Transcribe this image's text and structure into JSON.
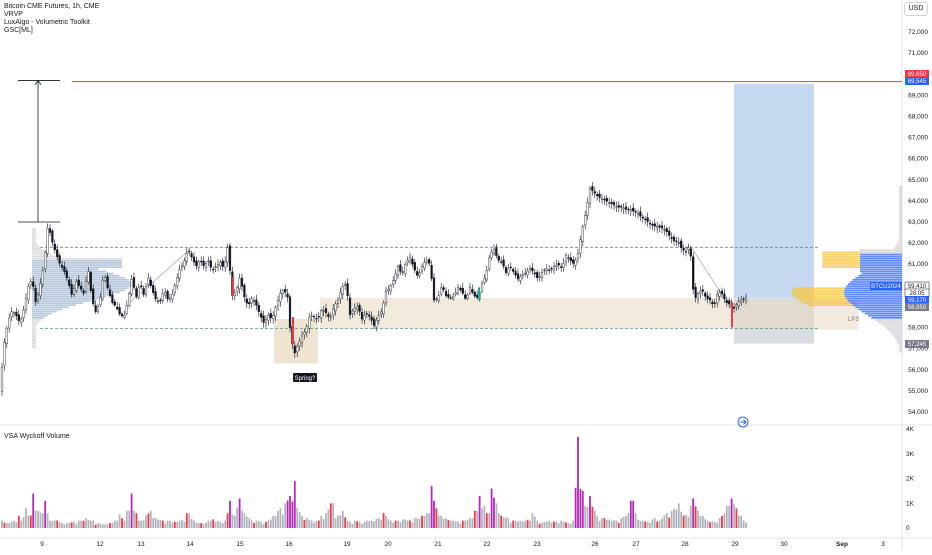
{
  "header": {
    "symbol_title": "Bitcoin CME Futures, 1h, CME",
    "indicators": [
      "VRVP",
      "LuxAlgo - Volumetric Toolkit",
      "GSC[ML]"
    ],
    "currency_button": "USD"
  },
  "price_axis": {
    "ticks": [
      "72,000",
      "71,000",
      "70,000",
      "69,000",
      "68,000",
      "67,000",
      "66,000",
      "65,000",
      "64,000",
      "63,000",
      "62,000",
      "61,000",
      "60,000",
      "59,000",
      "58,000",
      "57,000",
      "56,000",
      "55,000",
      "54,000"
    ],
    "labels": [
      {
        "text": "69,650",
        "price": 69650,
        "color": "#f23645"
      },
      {
        "text": "69,545",
        "price": 69545,
        "color": "#2962ff"
      },
      {
        "text": "BTCU2024",
        "price": 59410,
        "color": "#2962ff"
      },
      {
        "text": "59,410",
        "price": 59410,
        "color": "#131722"
      },
      {
        "text": "28:05",
        "price": 59100,
        "color": "#131722"
      },
      {
        "text": "59,170",
        "price": 58800,
        "color": "#2962ff"
      },
      {
        "text": "58,950",
        "price": 58450,
        "color": "#787b86"
      },
      {
        "text": "57,245",
        "price": 57245,
        "color": "#787b86"
      }
    ]
  },
  "time_axis": {
    "labels": [
      "9",
      "12",
      "13",
      "14",
      "15",
      "16",
      "19",
      "20",
      "21",
      "22",
      "23",
      "26",
      "27",
      "28",
      "29",
      "30",
      "Sep",
      "3"
    ]
  },
  "annotations": {
    "spring_label": "Spring?",
    "lps_label": "LPS",
    "replay_icon": "arrow-right-circle-icon"
  },
  "volume_pane": {
    "title": "VSA Wyckoff Volume",
    "ticks": [
      "3K",
      "2K",
      "1K",
      "0"
    ],
    "cut_tick": "4K"
  },
  "colors": {
    "up": "#ffffff",
    "down": "#131722",
    "accent_red": "#f23645",
    "accent_blue": "#2962ff",
    "zone_fill": "#e8d9bf",
    "target_fill": "#b9d0ee",
    "stop_fill": "#d1d4dc",
    "volume_magenta": "#b22ab5",
    "volume_red": "#f23645",
    "volume_grey": "#b2b5be"
  },
  "chart_data": {
    "type": "candlestick",
    "title": "Bitcoin CME Futures, 1h, CME",
    "ylim": [
      53800,
      72800
    ],
    "levels": {
      "resistance": 69650,
      "range_high": 61800,
      "range_low": 57950
    },
    "path": [
      [
        0,
        55000
      ],
      [
        4,
        57200
      ],
      [
        8,
        58300
      ],
      [
        12,
        58800
      ],
      [
        16,
        58600
      ],
      [
        20,
        58200
      ],
      [
        24,
        58900
      ],
      [
        28,
        59900
      ],
      [
        32,
        60300
      ],
      [
        36,
        59100
      ],
      [
        40,
        60000
      ],
      [
        44,
        61000
      ],
      [
        48,
        62900
      ],
      [
        52,
        62100
      ],
      [
        56,
        61500
      ],
      [
        60,
        61000
      ],
      [
        64,
        60700
      ],
      [
        68,
        60200
      ],
      [
        72,
        59500
      ],
      [
        76,
        60200
      ],
      [
        80,
        59900
      ],
      [
        84,
        59600
      ],
      [
        88,
        60800
      ],
      [
        92,
        59300
      ],
      [
        96,
        58700
      ],
      [
        100,
        59300
      ],
      [
        104,
        60600
      ],
      [
        108,
        59800
      ],
      [
        112,
        59200
      ],
      [
        116,
        59000
      ],
      [
        120,
        58600
      ],
      [
        124,
        58500
      ],
      [
        128,
        59300
      ],
      [
        132,
        60400
      ],
      [
        136,
        59400
      ],
      [
        140,
        60100
      ],
      [
        144,
        59500
      ],
      [
        148,
        60400
      ],
      [
        152,
        59800
      ],
      [
        156,
        59300
      ],
      [
        160,
        59200
      ],
      [
        164,
        59800
      ],
      [
        168,
        59300
      ],
      [
        172,
        59500
      ],
      [
        176,
        60200
      ],
      [
        180,
        60800
      ],
      [
        184,
        61100
      ],
      [
        188,
        61700
      ],
      [
        192,
        61300
      ],
      [
        196,
        60900
      ],
      [
        200,
        61200
      ],
      [
        204,
        60900
      ],
      [
        208,
        61200
      ],
      [
        212,
        60700
      ],
      [
        216,
        60900
      ],
      [
        220,
        61100
      ],
      [
        224,
        60800
      ],
      [
        228,
        61900
      ],
      [
        232,
        59500
      ],
      [
        236,
        59700
      ],
      [
        240,
        60400
      ],
      [
        244,
        59500
      ],
      [
        248,
        59000
      ],
      [
        252,
        59400
      ],
      [
        256,
        59100
      ],
      [
        260,
        58600
      ],
      [
        264,
        58200
      ],
      [
        268,
        58600
      ],
      [
        272,
        58400
      ],
      [
        276,
        59000
      ],
      [
        280,
        59600
      ],
      [
        284,
        59800
      ],
      [
        288,
        59400
      ],
      [
        290,
        58000
      ],
      [
        294,
        56700
      ],
      [
        298,
        57200
      ],
      [
        302,
        57600
      ],
      [
        306,
        57900
      ],
      [
        310,
        58600
      ],
      [
        314,
        58500
      ],
      [
        318,
        58400
      ],
      [
        322,
        58900
      ],
      [
        326,
        58700
      ],
      [
        330,
        58400
      ],
      [
        334,
        59000
      ],
      [
        338,
        59300
      ],
      [
        342,
        59900
      ],
      [
        346,
        60100
      ],
      [
        350,
        58600
      ],
      [
        354,
        58900
      ],
      [
        358,
        59000
      ],
      [
        362,
        58400
      ],
      [
        366,
        58700
      ],
      [
        370,
        58500
      ],
      [
        374,
        58100
      ],
      [
        378,
        58500
      ],
      [
        382,
        58800
      ],
      [
        386,
        59700
      ],
      [
        390,
        59900
      ],
      [
        394,
        60300
      ],
      [
        398,
        60900
      ],
      [
        402,
        60500
      ],
      [
        406,
        61100
      ],
      [
        410,
        61300
      ],
      [
        414,
        60800
      ],
      [
        418,
        60400
      ],
      [
        422,
        60900
      ],
      [
        426,
        61200
      ],
      [
        430,
        61000
      ],
      [
        434,
        59300
      ],
      [
        438,
        59400
      ],
      [
        442,
        60000
      ],
      [
        446,
        59500
      ],
      [
        450,
        59400
      ],
      [
        454,
        59500
      ],
      [
        458,
        59900
      ],
      [
        462,
        59700
      ],
      [
        466,
        59300
      ],
      [
        470,
        59900
      ],
      [
        474,
        59500
      ],
      [
        478,
        59400
      ],
      [
        482,
        60100
      ],
      [
        486,
        60500
      ],
      [
        490,
        61500
      ],
      [
        494,
        61700
      ],
      [
        498,
        61200
      ],
      [
        502,
        61100
      ],
      [
        506,
        60600
      ],
      [
        510,
        60900
      ],
      [
        514,
        60600
      ],
      [
        518,
        60300
      ],
      [
        522,
        60500
      ],
      [
        526,
        60600
      ],
      [
        530,
        60800
      ],
      [
        534,
        60600
      ],
      [
        538,
        60300
      ],
      [
        542,
        60600
      ],
      [
        546,
        60800
      ],
      [
        550,
        60700
      ],
      [
        554,
        60900
      ],
      [
        558,
        61000
      ],
      [
        562,
        60800
      ],
      [
        566,
        61400
      ],
      [
        570,
        61200
      ],
      [
        574,
        61000
      ],
      [
        578,
        61500
      ],
      [
        582,
        62600
      ],
      [
        586,
        63500
      ],
      [
        590,
        64600
      ],
      [
        594,
        64400
      ],
      [
        598,
        64200
      ],
      [
        602,
        64100
      ],
      [
        606,
        64000
      ],
      [
        610,
        63900
      ],
      [
        614,
        63800
      ],
      [
        618,
        63700
      ],
      [
        622,
        63700
      ],
      [
        626,
        63600
      ],
      [
        630,
        63600
      ],
      [
        634,
        63500
      ],
      [
        638,
        63400
      ],
      [
        642,
        63200
      ],
      [
        646,
        63100
      ],
      [
        650,
        62900
      ],
      [
        654,
        62800
      ],
      [
        658,
        62800
      ],
      [
        662,
        62700
      ],
      [
        666,
        62600
      ],
      [
        670,
        62300
      ],
      [
        674,
        62100
      ],
      [
        678,
        62100
      ],
      [
        682,
        61700
      ],
      [
        686,
        61600
      ],
      [
        690,
        61900
      ],
      [
        694,
        59300
      ],
      [
        698,
        59600
      ],
      [
        702,
        59800
      ],
      [
        706,
        59400
      ],
      [
        710,
        59300
      ],
      [
        714,
        59000
      ],
      [
        718,
        59700
      ],
      [
        722,
        59600
      ],
      [
        726,
        59200
      ],
      [
        730,
        59100
      ],
      [
        734,
        58900
      ],
      [
        738,
        59200
      ],
      [
        742,
        59300
      ],
      [
        746,
        59400
      ]
    ],
    "volume_path": [
      [
        2,
        300
      ],
      [
        8,
        200
      ],
      [
        14,
        300
      ],
      [
        18,
        500
      ],
      [
        22,
        300
      ],
      [
        26,
        800
      ],
      [
        30,
        500
      ],
      [
        34,
        1400
      ],
      [
        38,
        700
      ],
      [
        42,
        600
      ],
      [
        46,
        1100
      ],
      [
        50,
        300
      ],
      [
        56,
        300
      ],
      [
        62,
        200
      ],
      [
        68,
        200
      ],
      [
        74,
        250
      ],
      [
        80,
        300
      ],
      [
        86,
        400
      ],
      [
        92,
        300
      ],
      [
        98,
        200
      ],
      [
        104,
        150
      ],
      [
        110,
        200
      ],
      [
        116,
        300
      ],
      [
        120,
        550
      ],
      [
        124,
        300
      ],
      [
        128,
        700
      ],
      [
        132,
        1400
      ],
      [
        136,
        600
      ],
      [
        140,
        300
      ],
      [
        146,
        500
      ],
      [
        150,
        700
      ],
      [
        156,
        400
      ],
      [
        162,
        300
      ],
      [
        168,
        300
      ],
      [
        174,
        250
      ],
      [
        180,
        300
      ],
      [
        188,
        600
      ],
      [
        194,
        300
      ],
      [
        200,
        200
      ],
      [
        208,
        300
      ],
      [
        214,
        350
      ],
      [
        220,
        250
      ],
      [
        226,
        300
      ],
      [
        230,
        1100
      ],
      [
        234,
        500
      ],
      [
        240,
        1200
      ],
      [
        244,
        600
      ],
      [
        250,
        400
      ],
      [
        256,
        300
      ],
      [
        262,
        250
      ],
      [
        268,
        300
      ],
      [
        274,
        500
      ],
      [
        280,
        800
      ],
      [
        286,
        1000
      ],
      [
        290,
        1300
      ],
      [
        294,
        1900
      ],
      [
        298,
        800
      ],
      [
        302,
        500
      ],
      [
        306,
        400
      ],
      [
        312,
        300
      ],
      [
        318,
        300
      ],
      [
        322,
        500
      ],
      [
        326,
        600
      ],
      [
        332,
        1000
      ],
      [
        336,
        400
      ],
      [
        342,
        700
      ],
      [
        348,
        300
      ],
      [
        354,
        300
      ],
      [
        360,
        250
      ],
      [
        366,
        300
      ],
      [
        372,
        300
      ],
      [
        378,
        400
      ],
      [
        384,
        600
      ],
      [
        390,
        300
      ],
      [
        396,
        300
      ],
      [
        404,
        350
      ],
      [
        410,
        300
      ],
      [
        416,
        400
      ],
      [
        422,
        500
      ],
      [
        428,
        600
      ],
      [
        432,
        1700
      ],
      [
        436,
        800
      ],
      [
        440,
        500
      ],
      [
        446,
        400
      ],
      [
        452,
        300
      ],
      [
        458,
        250
      ],
      [
        464,
        300
      ],
      [
        470,
        400
      ],
      [
        476,
        700
      ],
      [
        480,
        1300
      ],
      [
        484,
        900
      ],
      [
        488,
        600
      ],
      [
        492,
        1600
      ],
      [
        496,
        1000
      ],
      [
        502,
        500
      ],
      [
        508,
        400
      ],
      [
        514,
        300
      ],
      [
        520,
        300
      ],
      [
        526,
        300
      ],
      [
        532,
        600
      ],
      [
        538,
        300
      ],
      [
        544,
        250
      ],
      [
        550,
        300
      ],
      [
        556,
        250
      ],
      [
        562,
        300
      ],
      [
        568,
        200
      ],
      [
        574,
        300
      ],
      [
        578,
        3700
      ],
      [
        582,
        1500
      ],
      [
        586,
        900
      ],
      [
        590,
        1300
      ],
      [
        594,
        700
      ],
      [
        598,
        500
      ],
      [
        604,
        400
      ],
      [
        610,
        350
      ],
      [
        616,
        300
      ],
      [
        622,
        400
      ],
      [
        628,
        600
      ],
      [
        632,
        1100
      ],
      [
        636,
        600
      ],
      [
        642,
        300
      ],
      [
        648,
        250
      ],
      [
        654,
        400
      ],
      [
        660,
        300
      ],
      [
        666,
        600
      ],
      [
        672,
        700
      ],
      [
        678,
        1000
      ],
      [
        684,
        500
      ],
      [
        690,
        900
      ],
      [
        694,
        1200
      ],
      [
        698,
        700
      ],
      [
        702,
        500
      ],
      [
        708,
        300
      ],
      [
        714,
        250
      ],
      [
        720,
        400
      ],
      [
        724,
        600
      ],
      [
        728,
        900
      ],
      [
        732,
        1200
      ],
      [
        736,
        800
      ],
      [
        740,
        500
      ],
      [
        744,
        300
      ]
    ],
    "volume_ylim": [
      0,
      4200
    ]
  }
}
